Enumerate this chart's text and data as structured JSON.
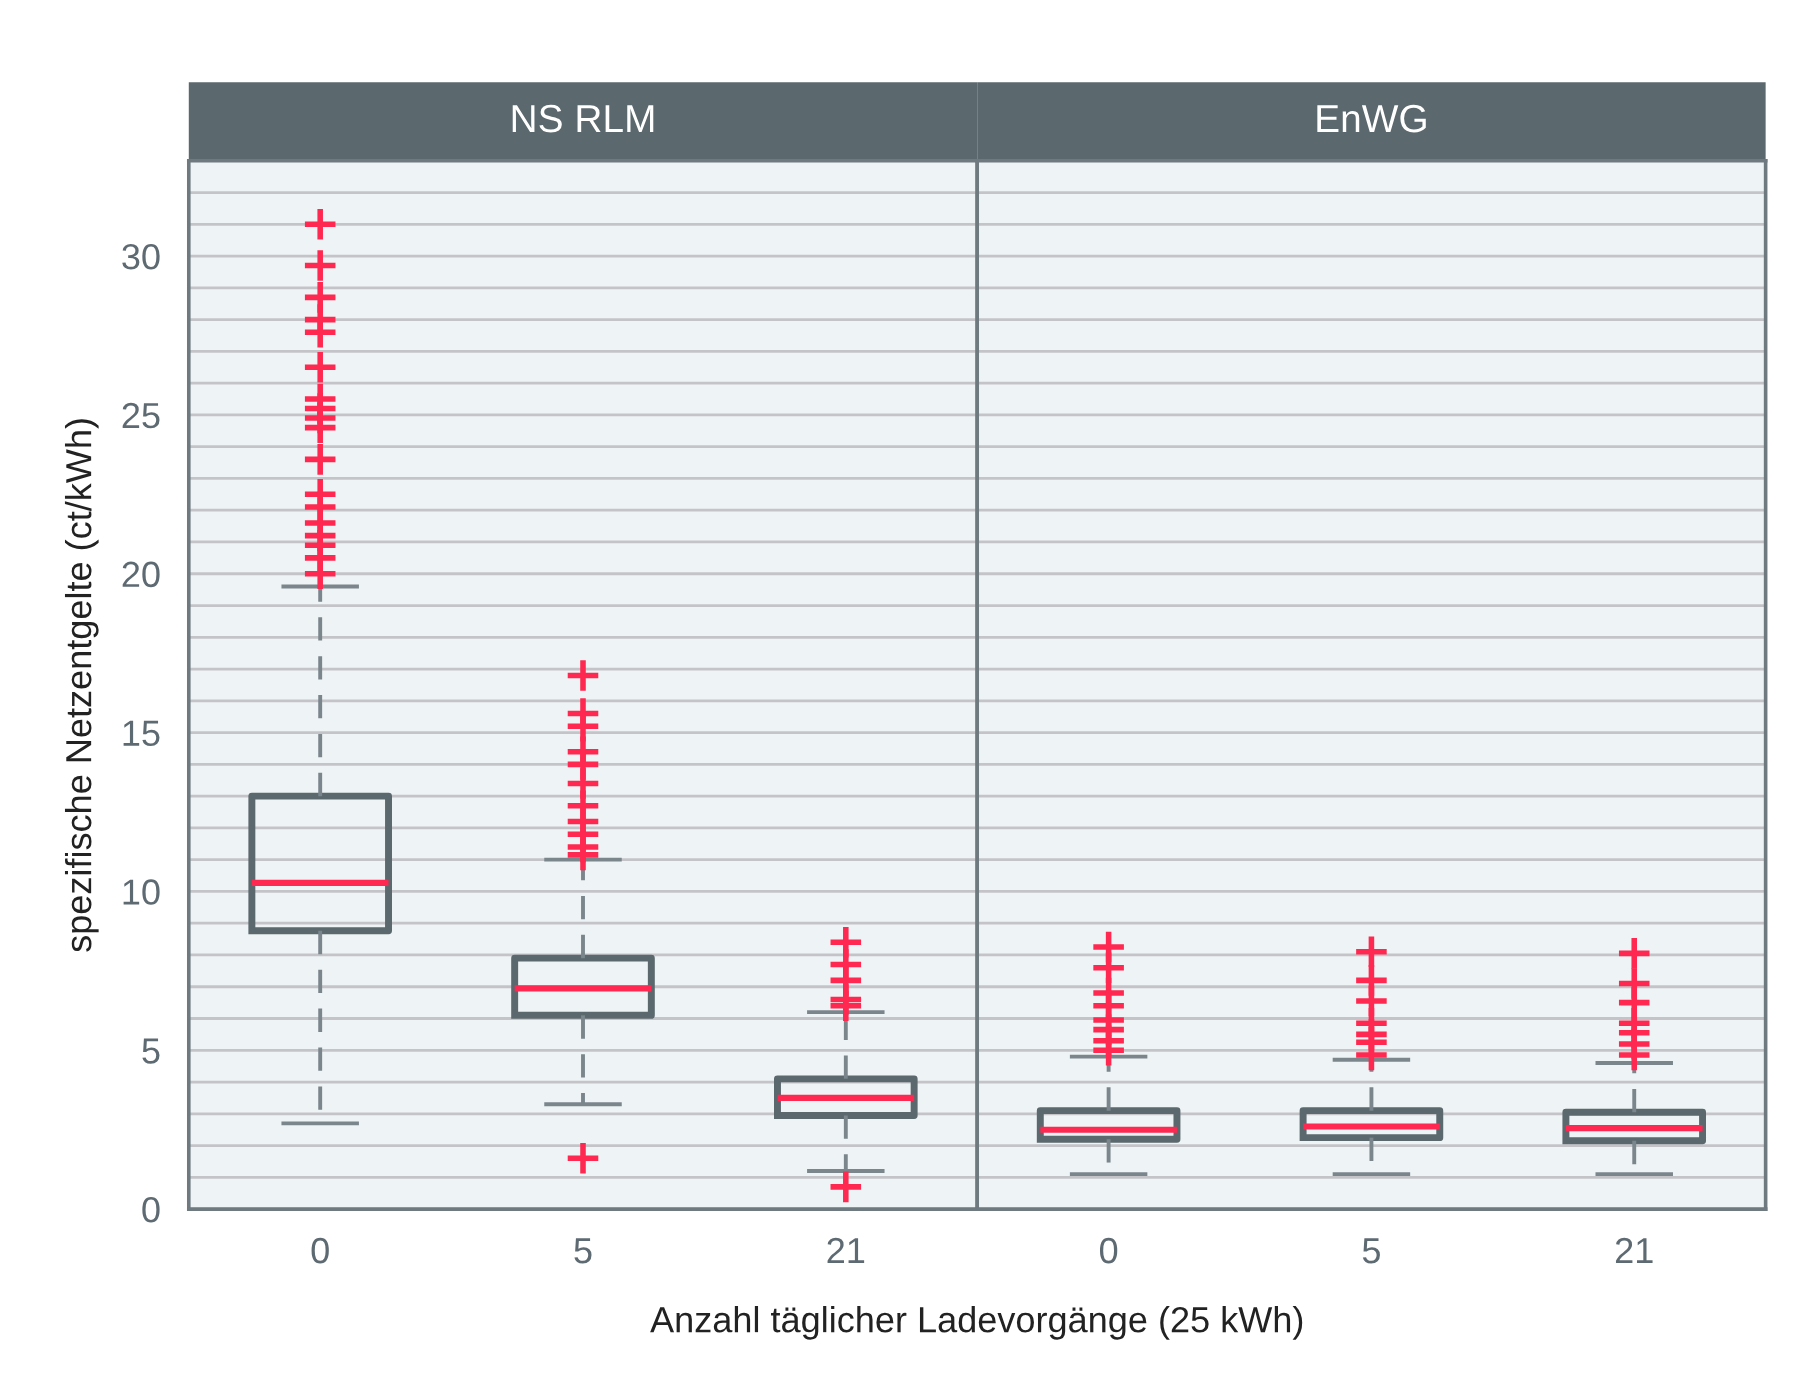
{
  "chart_data": [
    {
      "type": "box",
      "title": "NS RLM",
      "xlabel": "Anzahl täglicher Ladevorgänge (25 kWh)",
      "ylabel": "spezifische Netzentgelte (ct/kWh)",
      "categories": [
        "0",
        "5",
        "21"
      ],
      "ylim": [
        0,
        33
      ],
      "yticks": [
        0,
        {
          "value": 1,
          "label": null
        },
        {
          "value": 2,
          "label": null
        },
        {
          "value": 3,
          "label": null
        },
        {
          "value": 4,
          "label": null
        },
        5,
        {
          "value": 6,
          "label": null
        },
        {
          "value": 7,
          "label": null
        },
        {
          "value": 8,
          "label": null
        },
        {
          "value": 9,
          "label": null
        },
        10,
        {
          "value": 11,
          "label": null
        },
        {
          "value": 12,
          "label": null
        },
        {
          "value": 13,
          "label": null
        },
        {
          "value": 14,
          "label": null
        },
        15,
        {
          "value": 16,
          "label": null
        },
        {
          "value": 17,
          "label": null
        },
        {
          "value": 18,
          "label": null
        },
        {
          "value": 19,
          "label": null
        },
        20,
        {
          "value": 21,
          "label": null
        },
        {
          "value": 22,
          "label": null
        },
        {
          "value": 23,
          "label": null
        },
        {
          "value": 24,
          "label": null
        },
        25,
        {
          "value": 26,
          "label": null
        },
        {
          "value": 27,
          "label": null
        },
        {
          "value": 28,
          "label": null
        },
        {
          "value": 29,
          "label": null
        },
        30,
        {
          "value": 31,
          "label": null
        },
        {
          "value": 32,
          "label": null
        }
      ],
      "grid": "y",
      "series": [
        {
          "color": "#5b686e",
          "boxes": [
            {
              "low": 2.7,
              "q1": 8.76,
              "median": 10.27,
              "q3": 13.0,
              "high": 19.6,
              "outliers": [
                31.0,
                29.7,
                28.7,
                28.0,
                27.6,
                26.5,
                25.5,
                25.2,
                24.9,
                24.6,
                23.6,
                22.5,
                22.1,
                21.6,
                21.2,
                20.9,
                20.5,
                20.0
              ]
            },
            {
              "low": 3.3,
              "q1": 6.1,
              "median": 6.95,
              "q3": 7.9,
              "high": 11.0,
              "outliers": [
                16.8,
                15.6,
                15.2,
                14.4,
                14.0,
                13.4,
                12.7,
                12.2,
                11.8,
                11.4,
                11.15,
                1.6
              ]
            },
            {
              "low": 1.2,
              "q1": 2.95,
              "median": 3.5,
              "q3": 4.1,
              "high": 6.2,
              "outliers": [
                8.4,
                7.7,
                7.2,
                6.6,
                6.4,
                0.7
              ]
            }
          ]
        }
      ]
    },
    {
      "type": "box",
      "title": "EnWG",
      "categories": [
        "0",
        "5",
        "21"
      ],
      "ylim": [
        0,
        33
      ],
      "tick_labels": "x",
      "yticks": [
        0,
        {
          "value": 1,
          "label": null
        },
        {
          "value": 2,
          "label": null
        },
        {
          "value": 3,
          "label": null
        },
        {
          "value": 4,
          "label": null
        },
        5,
        {
          "value": 6,
          "label": null
        },
        {
          "value": 7,
          "label": null
        },
        {
          "value": 8,
          "label": null
        },
        {
          "value": 9,
          "label": null
        },
        10,
        {
          "value": 11,
          "label": null
        },
        {
          "value": 12,
          "label": null
        },
        {
          "value": 13,
          "label": null
        },
        {
          "value": 14,
          "label": null
        },
        15,
        {
          "value": 16,
          "label": null
        },
        {
          "value": 17,
          "label": null
        },
        {
          "value": 18,
          "label": null
        },
        {
          "value": 19,
          "label": null
        },
        20,
        {
          "value": 21,
          "label": null
        },
        {
          "value": 22,
          "label": null
        },
        {
          "value": 23,
          "label": null
        },
        {
          "value": 24,
          "label": null
        },
        25,
        {
          "value": 26,
          "label": null
        },
        {
          "value": 27,
          "label": null
        },
        {
          "value": 28,
          "label": null
        },
        {
          "value": 29,
          "label": null
        },
        30,
        {
          "value": 31,
          "label": null
        },
        {
          "value": 32,
          "label": null
        }
      ],
      "grid": "y",
      "series": [
        {
          "color": "#5b686e",
          "boxes": [
            {
              "low": 1.1,
              "q1": 2.2,
              "median": 2.5,
              "q3": 3.1,
              "high": 4.8,
              "outliers": [
                8.25,
                7.6,
                6.8,
                6.4,
                5.95,
                5.65,
                5.3,
                5.0
              ]
            },
            {
              "low": 1.1,
              "q1": 2.25,
              "median": 2.6,
              "q3": 3.1,
              "high": 4.7,
              "outliers": [
                8.1,
                7.2,
                6.55,
                5.85,
                5.5,
                5.25,
                4.85
              ]
            },
            {
              "low": 1.1,
              "q1": 2.15,
              "median": 2.55,
              "q3": 3.05,
              "high": 4.6,
              "outliers": [
                8.05,
                7.1,
                6.5,
                5.85,
                5.55,
                5.2,
                4.85
              ]
            }
          ]
        }
      ]
    }
  ]
}
